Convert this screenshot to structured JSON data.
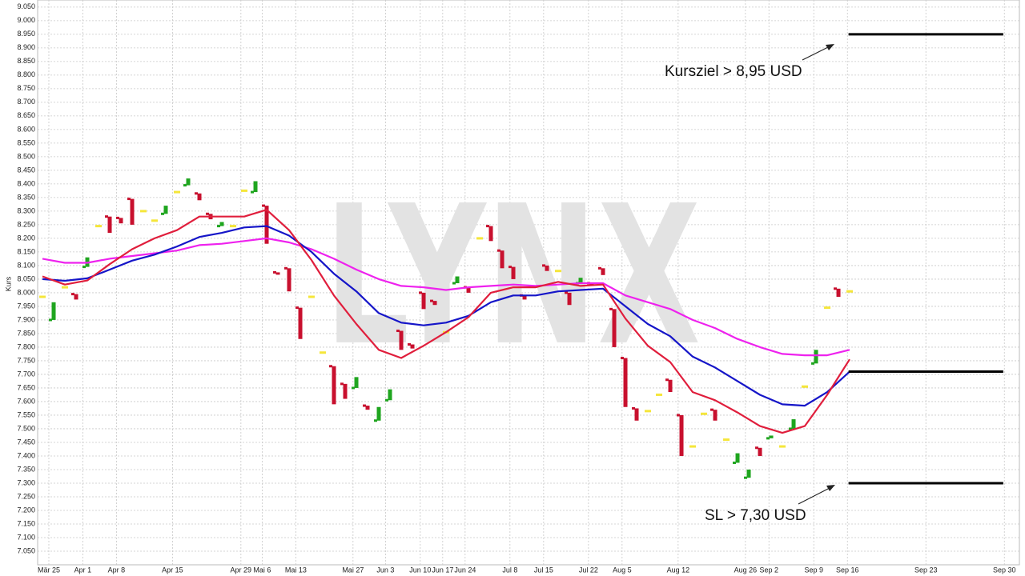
{
  "chart_data": {
    "type": "candlestick",
    "y_label": "Kurs",
    "watermark": "LYNX",
    "ylim": [
      7.0,
      9.076
    ],
    "yticks": [
      {
        "value": 7.05,
        "label": "7.050"
      },
      {
        "value": 7.1,
        "label": "7.100"
      },
      {
        "value": 7.15,
        "label": "7.150"
      },
      {
        "value": 7.2,
        "label": "7.200"
      },
      {
        "value": 7.25,
        "label": "7.250"
      },
      {
        "value": 7.3,
        "label": "7.300"
      },
      {
        "value": 7.35,
        "label": "7.350"
      },
      {
        "value": 7.4,
        "label": "7.400"
      },
      {
        "value": 7.45,
        "label": "7.450"
      },
      {
        "value": 7.5,
        "label": "7.500"
      },
      {
        "value": 7.55,
        "label": "7.550"
      },
      {
        "value": 7.6,
        "label": "7.600"
      },
      {
        "value": 7.65,
        "label": "7.650"
      },
      {
        "value": 7.7,
        "label": "7.700"
      },
      {
        "value": 7.75,
        "label": "7.750"
      },
      {
        "value": 7.8,
        "label": "7.800"
      },
      {
        "value": 7.85,
        "label": "7.850"
      },
      {
        "value": 7.9,
        "label": "7.900"
      },
      {
        "value": 7.95,
        "label": "7.950"
      },
      {
        "value": 8.0,
        "label": "8.000"
      },
      {
        "value": 8.05,
        "label": "8.050"
      },
      {
        "value": 8.1,
        "label": "8.100"
      },
      {
        "value": 8.15,
        "label": "8.150"
      },
      {
        "value": 8.2,
        "label": "8.200"
      },
      {
        "value": 8.25,
        "label": "8.250"
      },
      {
        "value": 8.3,
        "label": "8.300"
      },
      {
        "value": 8.35,
        "label": "8.350"
      },
      {
        "value": 8.4,
        "label": "8.400"
      },
      {
        "value": 8.45,
        "label": "8.450"
      },
      {
        "value": 8.5,
        "label": "8.500"
      },
      {
        "value": 8.55,
        "label": "8.550"
      },
      {
        "value": 8.6,
        "label": "8.600"
      },
      {
        "value": 8.65,
        "label": "8.650"
      },
      {
        "value": 8.7,
        "label": "8.700"
      },
      {
        "value": 8.75,
        "label": "8.750"
      },
      {
        "value": 8.8,
        "label": "8.800"
      },
      {
        "value": 8.85,
        "label": "8.850"
      },
      {
        "value": 8.9,
        "label": "8.900"
      },
      {
        "value": 8.95,
        "label": "8.950"
      },
      {
        "value": 9.0,
        "label": "9.000"
      },
      {
        "value": 9.05,
        "label": "9.050"
      }
    ],
    "xlim": [
      -0.43,
      87.14
    ],
    "xticks": [
      {
        "value": 0.57,
        "label": "Mär 25"
      },
      {
        "value": 3.6,
        "label": "Apr 1"
      },
      {
        "value": 6.6,
        "label": "Apr 8"
      },
      {
        "value": 11.6,
        "label": "Apr 15"
      },
      {
        "value": 17.7,
        "label": "Apr 29"
      },
      {
        "value": 19.6,
        "label": "Mai 6"
      },
      {
        "value": 22.6,
        "label": "Mai 13"
      },
      {
        "value": 27.7,
        "label": "Mai 27"
      },
      {
        "value": 30.6,
        "label": "Jun 3"
      },
      {
        "value": 33.7,
        "label": "Jun 10"
      },
      {
        "value": 35.7,
        "label": "Jun 17"
      },
      {
        "value": 37.7,
        "label": "Jun 24"
      },
      {
        "value": 41.7,
        "label": "Jul 8"
      },
      {
        "value": 44.7,
        "label": "Jul 15"
      },
      {
        "value": 48.7,
        "label": "Jul 22"
      },
      {
        "value": 51.7,
        "label": "Aug 5"
      },
      {
        "value": 56.7,
        "label": "Aug 12"
      },
      {
        "value": 62.7,
        "label": "Aug 26"
      },
      {
        "value": 64.8,
        "label": "Sep 2"
      },
      {
        "value": 68.8,
        "label": "Sep 9"
      },
      {
        "value": 71.8,
        "label": "Sep 16"
      },
      {
        "value": 78.8,
        "label": "Sep 23"
      },
      {
        "value": 85.8,
        "label": "Sep 30"
      }
    ],
    "grid": true,
    "up_color": "#1fa51f",
    "down_color": "#c8102e",
    "flat_color": "#f5e63a",
    "candles": {
      "x": [
        0,
        1,
        2,
        3,
        4,
        5,
        6,
        7,
        8,
        9,
        10,
        11,
        12,
        13,
        14,
        15,
        16,
        17,
        18,
        19,
        20,
        21,
        22,
        23,
        24,
        25,
        26,
        27,
        28,
        29,
        30,
        31,
        32,
        33,
        34,
        35,
        36,
        37,
        38,
        39,
        40,
        41,
        42,
        43,
        45,
        46,
        47,
        48,
        49,
        50,
        51,
        52,
        53,
        54,
        55,
        56,
        57,
        58,
        59,
        60,
        61,
        62,
        63,
        64,
        65,
        66,
        67,
        68,
        69,
        70,
        71,
        72
      ],
      "open": [
        7.985,
        7.9,
        8.02,
        7.995,
        8.095,
        8.245,
        8.28,
        8.275,
        8.345,
        8.3,
        8.265,
        8.29,
        8.37,
        8.395,
        8.365,
        8.29,
        8.245,
        8.245,
        8.375,
        8.37,
        8.32,
        8.075,
        8.09,
        7.945,
        7.985,
        7.78,
        7.73,
        7.665,
        7.65,
        7.585,
        7.53,
        7.605,
        7.86,
        7.81,
        8.0,
        7.97,
        7.855,
        8.035,
        8.02,
        8.2,
        8.245,
        8.155,
        8.095,
        7.99,
        8.1,
        8.08,
        8.0,
        8.035,
        8.035,
        8.09,
        7.94,
        7.76,
        7.575,
        7.565,
        7.625,
        7.68,
        7.55,
        7.435,
        7.555,
        7.57,
        7.46,
        7.375,
        7.32,
        7.43,
        7.465,
        7.435,
        7.5,
        7.655,
        7.74,
        7.945,
        8.015,
        8.005
      ],
      "close": [
        7.985,
        7.965,
        8.02,
        7.975,
        8.13,
        8.245,
        8.22,
        8.255,
        8.25,
        8.3,
        8.265,
        8.32,
        8.37,
        8.42,
        8.34,
        8.27,
        8.26,
        8.245,
        8.375,
        8.41,
        8.18,
        8.07,
        8.005,
        7.83,
        7.985,
        7.78,
        7.59,
        7.61,
        7.69,
        7.57,
        7.58,
        7.645,
        7.79,
        7.795,
        7.94,
        7.955,
        7.855,
        8.06,
        8.0,
        8.2,
        8.19,
        8.09,
        8.05,
        7.975,
        8.08,
        8.08,
        7.955,
        8.055,
        8.025,
        8.065,
        7.8,
        7.58,
        7.53,
        7.565,
        7.625,
        7.635,
        7.4,
        7.435,
        7.555,
        7.53,
        7.46,
        7.41,
        7.35,
        7.4,
        7.475,
        7.435,
        7.535,
        7.655,
        7.79,
        7.945,
        7.985,
        8.005
      ]
    },
    "series_x": [
      0,
      2,
      4,
      6,
      8,
      10,
      12,
      14,
      16,
      18,
      20,
      22,
      24,
      26,
      28,
      30,
      32,
      34,
      36,
      38,
      40,
      42,
      44,
      46,
      48,
      50,
      52,
      54,
      56,
      58,
      60,
      62,
      64,
      66,
      68,
      70,
      72
    ],
    "series": [
      {
        "color": "#ee22ee",
        "values": [
          8.125,
          8.11,
          8.11,
          8.125,
          8.135,
          8.145,
          8.155,
          8.175,
          8.18,
          8.19,
          8.2,
          8.185,
          8.16,
          8.125,
          8.085,
          8.05,
          8.025,
          8.02,
          8.01,
          8.02,
          8.025,
          8.03,
          8.025,
          8.03,
          8.035,
          8.035,
          7.99,
          7.965,
          7.94,
          7.9,
          7.87,
          7.83,
          7.8,
          7.775,
          7.77,
          7.77,
          7.79
        ]
      },
      {
        "color": "#1515c8",
        "values": [
          8.05,
          8.044,
          8.053,
          8.085,
          8.118,
          8.14,
          8.17,
          8.205,
          8.22,
          8.24,
          8.245,
          8.21,
          8.15,
          8.07,
          8.005,
          7.925,
          7.89,
          7.88,
          7.89,
          7.915,
          7.965,
          7.99,
          7.99,
          8.005,
          8.01,
          8.015,
          7.95,
          7.885,
          7.84,
          7.765,
          7.725,
          7.675,
          7.625,
          7.59,
          7.585,
          7.635,
          7.71
        ]
      },
      {
        "color": "#e01e3c",
        "values": [
          8.06,
          8.03,
          8.045,
          8.105,
          8.16,
          8.2,
          8.23,
          8.28,
          8.28,
          8.28,
          8.305,
          8.23,
          8.12,
          7.99,
          7.885,
          7.79,
          7.76,
          7.805,
          7.855,
          7.91,
          8.0,
          8.02,
          8.02,
          8.04,
          8.025,
          8.03,
          7.905,
          7.805,
          7.745,
          7.635,
          7.605,
          7.56,
          7.51,
          7.485,
          7.51,
          7.625,
          7.755
        ]
      }
    ],
    "levels": [
      8.95,
      7.71,
      7.3
    ],
    "level_x": [
      71.9,
      85.7
    ],
    "level_color": "#000000",
    "annotations": [
      "Kursziel > 8,95 USD",
      "SL > 7,30 USD"
    ]
  }
}
